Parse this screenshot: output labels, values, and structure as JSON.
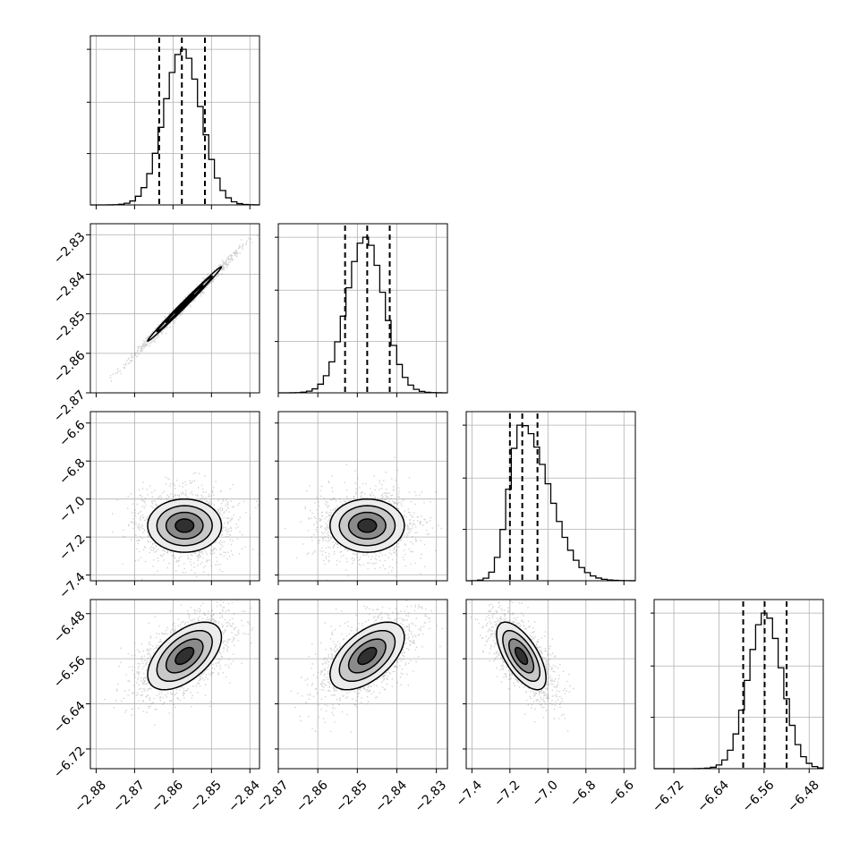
{
  "chart_data": {
    "type": "corner",
    "grid": true,
    "histogram_color": "#000000",
    "quantile_line_style": "dashed",
    "scatter_color": "#808080",
    "contour_color": "#000000",
    "parameters": [
      {
        "ticks": [
          -2.88,
          -2.87,
          -2.86,
          -2.85,
          -2.84
        ],
        "tick_labels": [
          "−2.88",
          "−2.87",
          "−2.86",
          "−2.85",
          "−2.84"
        ],
        "range": [
          -2.8815,
          -2.8375
        ],
        "quantiles": [
          -2.8636,
          -2.8577,
          -2.8517
        ],
        "hist_mean": -2.8575,
        "hist_sd": 0.0048
      },
      {
        "ticks": [
          -2.87,
          -2.86,
          -2.85,
          -2.84,
          -2.83
        ],
        "tick_labels": [
          "−2.87",
          "−2.86",
          "−2.85",
          "−2.84",
          "−2.83"
        ],
        "range": [
          -2.87,
          -2.8272
        ],
        "quantiles": [
          -2.8531,
          -2.8475,
          -2.8418
        ],
        "hist_mean": -2.848,
        "hist_sd": 0.0047
      },
      {
        "ticks": [
          -7.4,
          -7.2,
          -7.0,
          -6.8,
          -6.6
        ],
        "tick_labels": [
          "−7.4",
          "−7.2",
          "−7.0",
          "−6.8",
          "−6.6"
        ],
        "range": [
          -7.43,
          -6.54
        ],
        "quantiles": [
          -7.2,
          -7.135,
          -7.055
        ],
        "hist_mean": -7.14,
        "hist_sd": 0.065
      },
      {
        "ticks": [
          -6.72,
          -6.64,
          -6.56,
          -6.48
        ],
        "tick_labels": [
          "−6.72",
          "−6.64",
          "−6.56",
          "−6.48"
        ],
        "range": [
          -6.755,
          -6.455
        ],
        "quantiles": [
          -6.597,
          -6.559,
          -6.52
        ],
        "hist_mean": -6.558,
        "hist_sd": 0.03
      }
    ],
    "pair_samples": [
      {
        "row": 1,
        "col": 0,
        "center": [
          -2.857,
          -2.8475
        ],
        "sd": [
          0.0048,
          0.0047
        ],
        "corr": 0.995
      },
      {
        "row": 2,
        "col": 0,
        "center": [
          -2.857,
          -7.14
        ],
        "sd": [
          0.0048,
          0.07
        ],
        "corr": 0.0
      },
      {
        "row": 2,
        "col": 1,
        "center": [
          -2.8475,
          -7.14
        ],
        "sd": [
          0.0047,
          0.07
        ],
        "corr": 0.0
      },
      {
        "row": 3,
        "col": 0,
        "center": [
          -2.857,
          -6.555
        ],
        "sd": [
          0.0048,
          0.03
        ],
        "corr": 0.55
      },
      {
        "row": 3,
        "col": 1,
        "center": [
          -2.8475,
          -6.555
        ],
        "sd": [
          0.0047,
          0.03
        ],
        "corr": 0.55
      },
      {
        "row": 3,
        "col": 2,
        "center": [
          -7.14,
          -6.555
        ],
        "sd": [
          0.065,
          0.03
        ],
        "corr": -0.65
      }
    ]
  }
}
